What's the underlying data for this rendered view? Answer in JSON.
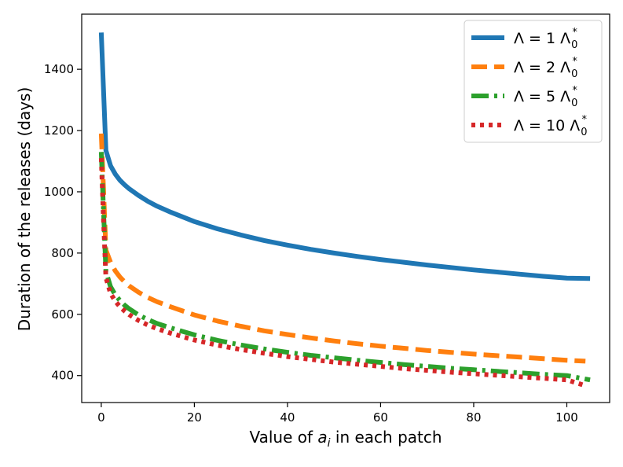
{
  "chart_data": {
    "type": "line",
    "xlabel": "Value of a_i in each patch",
    "xlabel_parts": {
      "prefix": "Value of ",
      "var": "a",
      "sub": "i",
      "suffix": " in each patch"
    },
    "ylabel": "Duration of the releases (days)",
    "xlim": [
      -4.2,
      109.2
    ],
    "ylim": [
      312,
      1580
    ],
    "xticks": [
      0,
      20,
      40,
      60,
      80,
      100
    ],
    "yticks": [
      400,
      600,
      800,
      1000,
      1200,
      1400
    ],
    "grid": false,
    "legend_placement": "top-right",
    "series": [
      {
        "name": "Λ = 1 Λ0*",
        "legend": {
          "lhs": "Λ = 1 Λ",
          "sub": "0",
          "sup": "*"
        },
        "color": "#1f77b4",
        "style": "solid",
        "x": [
          0,
          1,
          2,
          3,
          4,
          5,
          6,
          8,
          10,
          12,
          15,
          20,
          25,
          30,
          35,
          40,
          45,
          50,
          55,
          60,
          65,
          70,
          75,
          80,
          85,
          90,
          95,
          100,
          105
        ],
        "y": [
          1520,
          1135,
          1085,
          1058,
          1038,
          1023,
          1010,
          988,
          969,
          953,
          933,
          903,
          879,
          859,
          841,
          826,
          812,
          800,
          789,
          779,
          770,
          761,
          753,
          745,
          738,
          731,
          724,
          718,
          717
        ]
      },
      {
        "name": "Λ = 2 Λ0*",
        "legend": {
          "lhs": "Λ = 2 Λ",
          "sub": "0",
          "sup": "*"
        },
        "color": "#ff7f0e",
        "style": "dashed",
        "x": [
          0,
          0.5,
          1,
          2,
          3,
          4,
          5,
          6,
          8,
          10,
          12,
          15,
          20,
          25,
          30,
          35,
          40,
          45,
          50,
          55,
          60,
          65,
          70,
          75,
          80,
          85,
          90,
          95,
          100,
          104
        ],
        "y": [
          1190,
          1000,
          810,
          770,
          742,
          722,
          706,
          693,
          672,
          655,
          641,
          624,
          598,
          578,
          561,
          546,
          534,
          523,
          513,
          504,
          496,
          489,
          482,
          476,
          470,
          465,
          460,
          455,
          450,
          447
        ]
      },
      {
        "name": "Λ = 5 Λ0*",
        "legend": {
          "lhs": "Λ = 5 Λ",
          "sub": "0",
          "sup": "*"
        },
        "color": "#2ca02c",
        "style": "dashdot",
        "x": [
          0,
          0.5,
          1,
          2,
          3,
          4,
          5,
          6,
          8,
          10,
          12,
          15,
          20,
          25,
          30,
          35,
          40,
          45,
          50,
          55,
          60,
          65,
          70,
          75,
          80,
          85,
          90,
          95,
          100,
          105
        ],
        "y": [
          1130,
          930,
          740,
          690,
          664,
          645,
          630,
          618,
          598,
          583,
          570,
          555,
          533,
          515,
          500,
          487,
          476,
          466,
          458,
          450,
          443,
          436,
          430,
          424,
          419,
          414,
          409,
          404,
          400,
          386
        ]
      },
      {
        "name": "Λ = 10 Λ0*",
        "legend": {
          "lhs": "Λ = 10 Λ",
          "sub": "0",
          "sup": "*"
        },
        "color": "#d62728",
        "style": "dotted",
        "x": [
          0,
          0.5,
          1,
          2,
          3,
          4,
          5,
          6,
          8,
          10,
          12,
          15,
          20,
          25,
          30,
          35,
          40,
          45,
          50,
          55,
          60,
          65,
          70,
          75,
          80,
          85,
          90,
          95,
          100,
          104
        ],
        "y": [
          1110,
          900,
          720,
          668,
          643,
          625,
          611,
          599,
          580,
          565,
          553,
          538,
          516,
          499,
          485,
          473,
          462,
          453,
          444,
          437,
          430,
          423,
          417,
          411,
          406,
          401,
          396,
          391,
          386,
          367
        ]
      }
    ]
  }
}
